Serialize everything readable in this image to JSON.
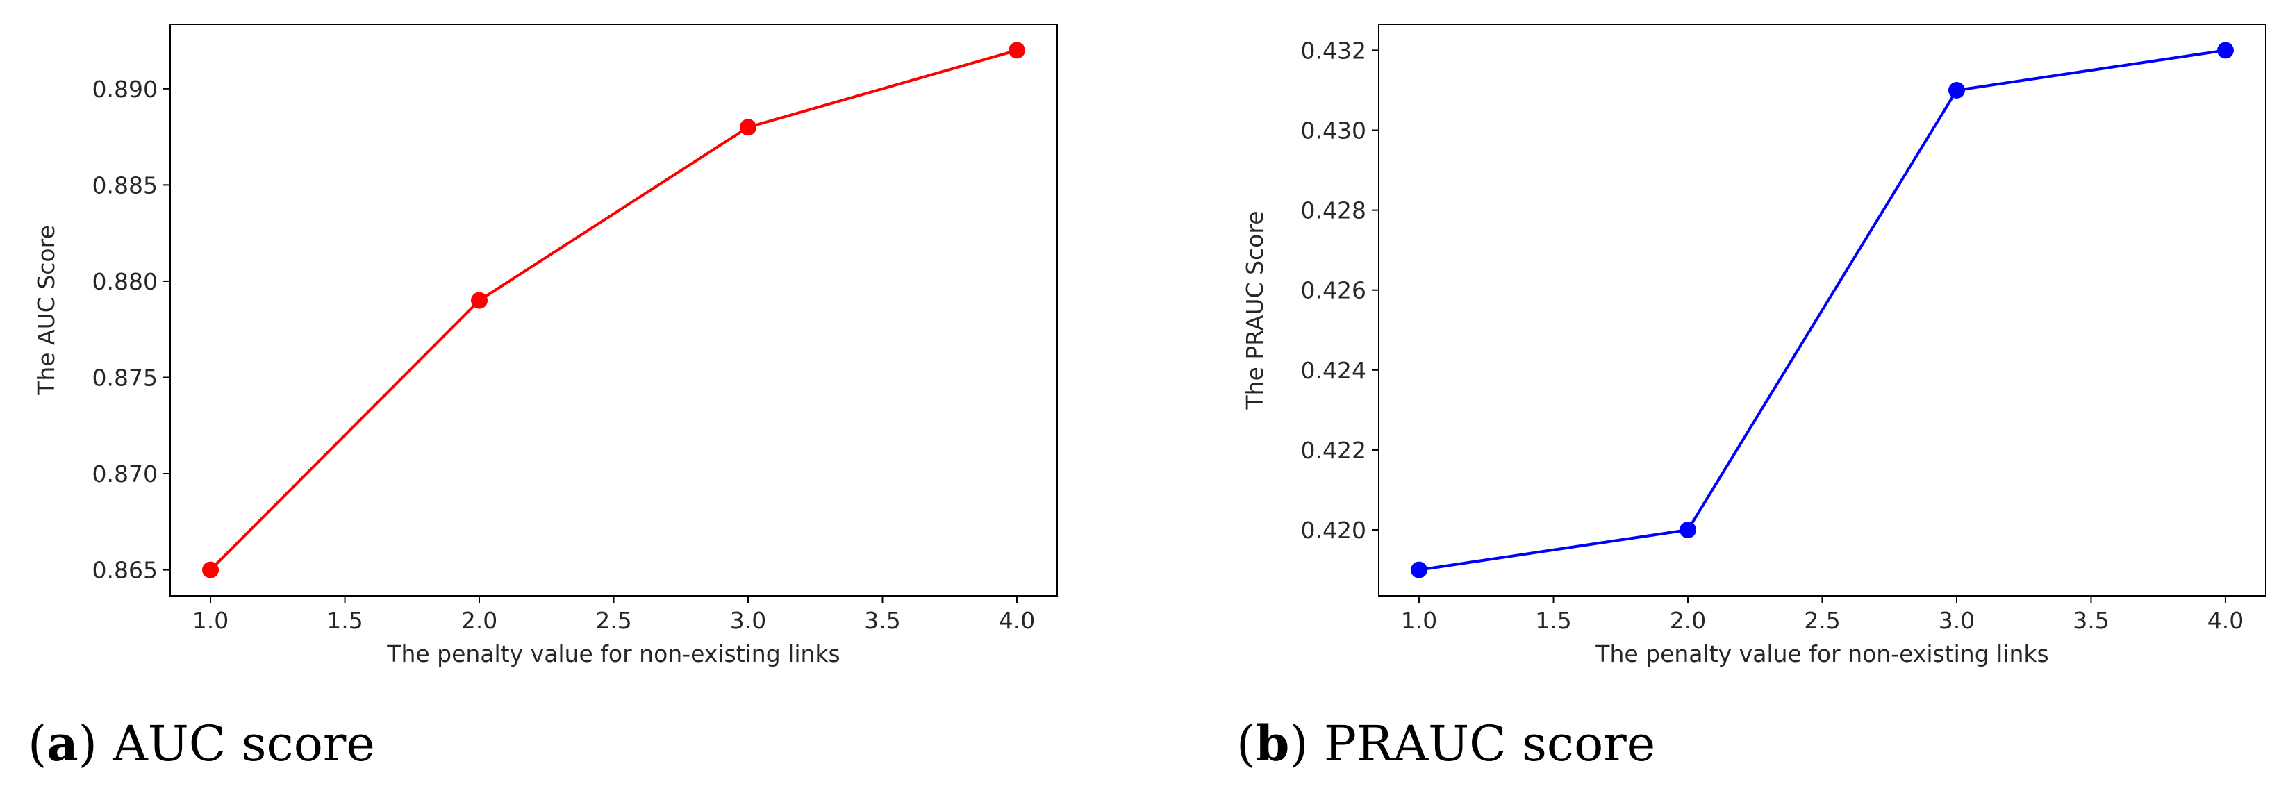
{
  "chart_data": [
    {
      "type": "line",
      "caption_letter": "a",
      "caption_text": "AUC score",
      "xlabel": "The penalty value for non-existing links",
      "ylabel": "The AUC Score",
      "x": [
        1.0,
        2.0,
        3.0,
        4.0
      ],
      "series": [
        {
          "values": [
            0.865,
            0.879,
            0.888,
            0.892
          ],
          "color": "#ff0000",
          "marker": "circle"
        }
      ],
      "xlim": [
        0.85,
        4.15
      ],
      "ylim": [
        0.86365,
        0.89335
      ],
      "xticks": [
        1.0,
        1.5,
        2.0,
        2.5,
        3.0,
        3.5,
        4.0
      ],
      "xtick_labels": [
        "1.0",
        "1.5",
        "2.0",
        "2.5",
        "3.0",
        "3.5",
        "4.0"
      ],
      "yticks": [
        0.865,
        0.87,
        0.875,
        0.88,
        0.885,
        0.89
      ],
      "ytick_labels": [
        "0.865",
        "0.870",
        "0.875",
        "0.880",
        "0.885",
        "0.890"
      ],
      "grid": false
    },
    {
      "type": "line",
      "caption_letter": "b",
      "caption_text": "PRAUC score",
      "xlabel": "The penalty value for non-existing links",
      "ylabel": "The PRAUC Score",
      "x": [
        1.0,
        2.0,
        3.0,
        4.0
      ],
      "series": [
        {
          "values": [
            0.419,
            0.42,
            0.431,
            0.432
          ],
          "color": "#0000ff",
          "marker": "circle"
        }
      ],
      "xlim": [
        0.85,
        4.15
      ],
      "ylim": [
        0.41835,
        0.43265
      ],
      "xticks": [
        1.0,
        1.5,
        2.0,
        2.5,
        3.0,
        3.5,
        4.0
      ],
      "xtick_labels": [
        "1.0",
        "1.5",
        "2.0",
        "2.5",
        "3.0",
        "3.5",
        "4.0"
      ],
      "yticks": [
        0.42,
        0.422,
        0.424,
        0.426,
        0.428,
        0.43,
        0.432
      ],
      "ytick_labels": [
        "0.420",
        "0.422",
        "0.424",
        "0.426",
        "0.428",
        "0.430",
        "0.432"
      ],
      "grid": false
    }
  ]
}
